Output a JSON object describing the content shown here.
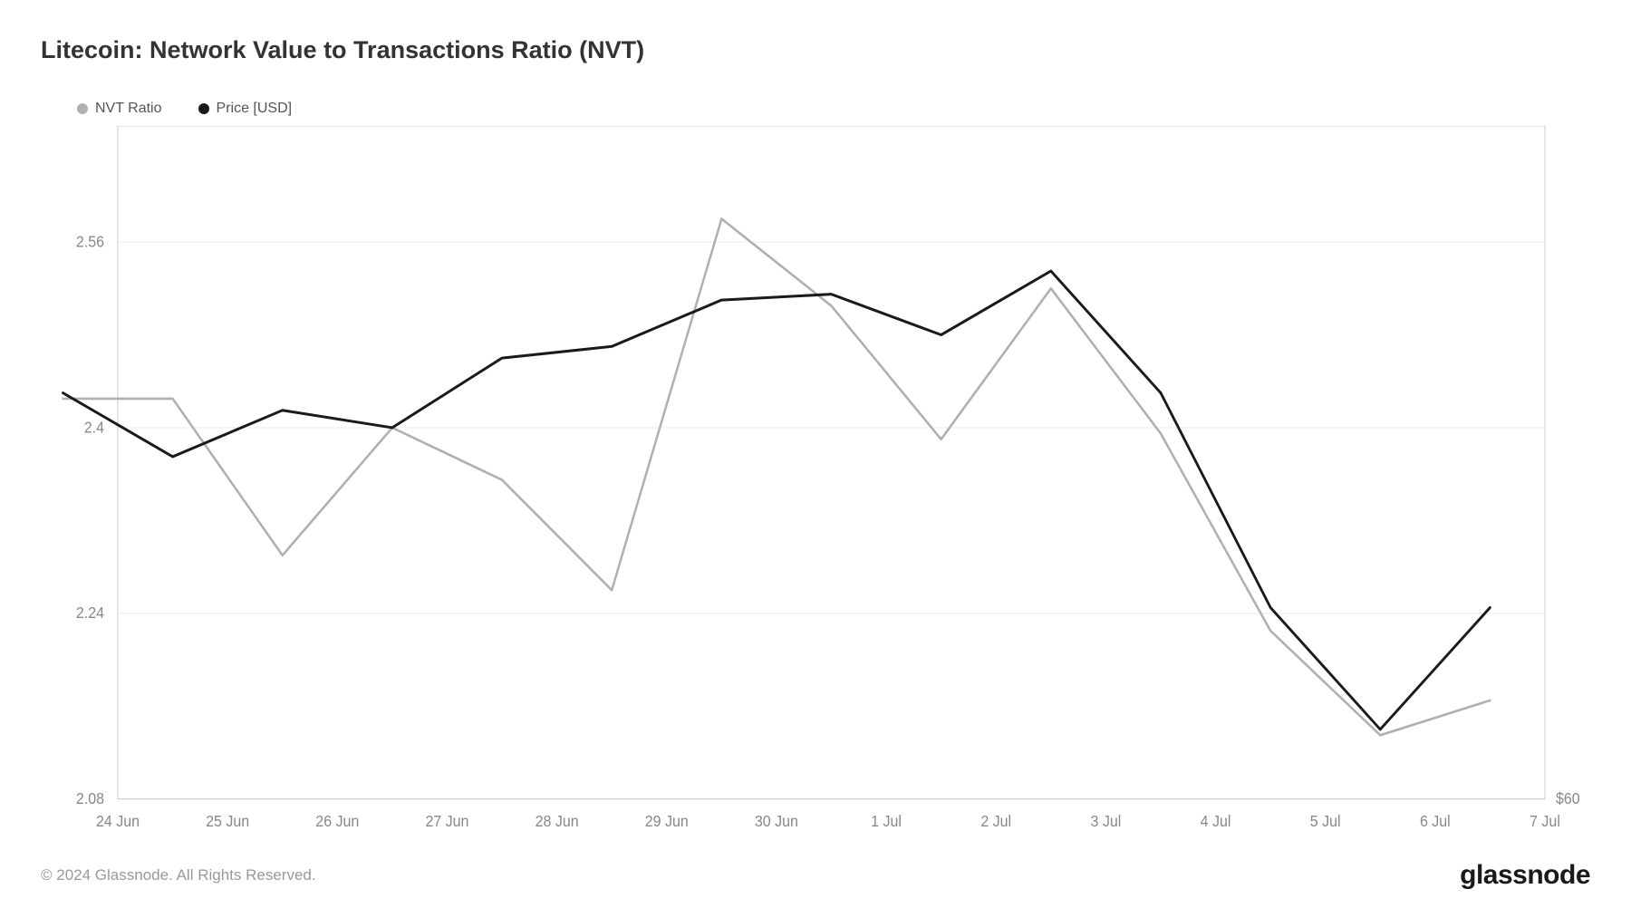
{
  "chart": {
    "title": "Litecoin: Network Value to Transactions Ratio (NVT)",
    "type": "line",
    "background_color": "#ffffff",
    "grid_color": "#eeeeee",
    "border_color": "#cccccc",
    "axis_label_color": "#888888",
    "axis_label_fontsize": 16,
    "title_color": "#333333",
    "title_fontsize": 27,
    "x_categories": [
      "24 Jun",
      "25 Jun",
      "26 Jun",
      "27 Jun",
      "28 Jun",
      "29 Jun",
      "30 Jun",
      "1 Jul",
      "2 Jul",
      "3 Jul",
      "4 Jul",
      "5 Jul",
      "6 Jul",
      "7 Jul"
    ],
    "y_left": {
      "min": 2.08,
      "max": 2.66,
      "ticks": [
        2.08,
        2.24,
        2.4,
        2.56
      ],
      "tick_labels": [
        "2.08",
        "2.24",
        "2.4",
        "2.56"
      ]
    },
    "y_right": {
      "ticks_at_left_value": [
        2.08
      ],
      "tick_labels": [
        "$60"
      ]
    },
    "legend": {
      "items": [
        {
          "label": "NVT Ratio",
          "color": "#b0b0b0"
        },
        {
          "label": "Price [USD]",
          "color": "#1a1a1a"
        }
      ]
    },
    "series": [
      {
        "name": "NVT Ratio",
        "color": "#b0b0b0",
        "line_width": 2.5,
        "x_offset": -0.5,
        "data": [
          2.425,
          2.425,
          2.29,
          2.4,
          2.355,
          2.26,
          2.58,
          2.505,
          2.39,
          2.52,
          2.395,
          2.225,
          2.135,
          2.165
        ]
      },
      {
        "name": "Price [USD]",
        "color": "#1a1a1a",
        "line_width": 2.8,
        "x_offset": -0.5,
        "data": [
          2.43,
          2.375,
          2.415,
          2.4,
          2.46,
          2.47,
          2.51,
          2.515,
          2.48,
          2.535,
          2.43,
          2.245,
          2.14,
          2.245
        ]
      }
    ]
  },
  "footer": {
    "copyright": "© 2024 Glassnode. All Rights Reserved.",
    "brand": "glassnode"
  }
}
